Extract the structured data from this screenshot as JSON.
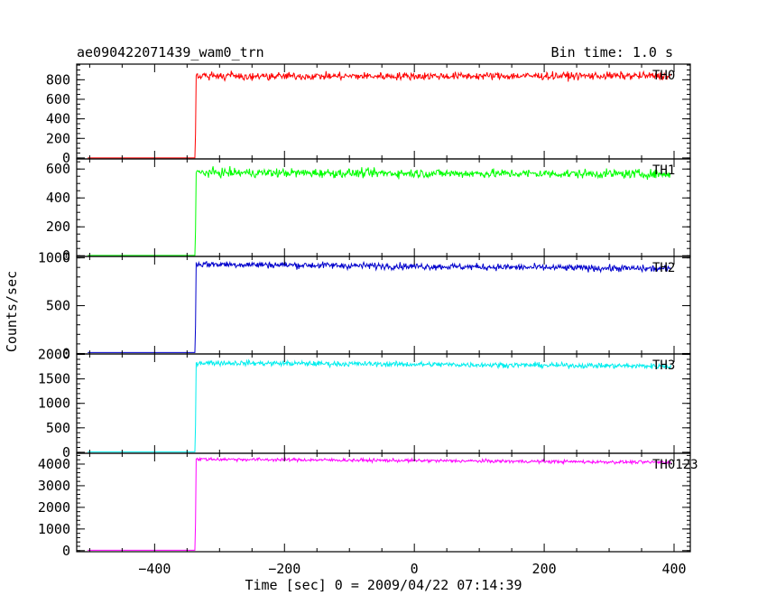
{
  "chart_data": {
    "type": "line",
    "title_left": "ae090422071439_wam0_trn",
    "title_right": "Bin time: 1.0 s",
    "xlabel": "Time [sec] 0 = 2009/04/22 07:14:39",
    "ylabel": "Counts/sec",
    "xlim": [
      -520,
      425
    ],
    "x_ticks": [
      -400,
      -200,
      0,
      200,
      400
    ],
    "grid": false,
    "onset_x": -337,
    "x_end": 395,
    "x_start": -503,
    "panels": [
      {
        "name": "TH0",
        "color": "#ff0000",
        "ylim": [
          -10,
          960
        ],
        "y_ticks": [
          0,
          200,
          400,
          600,
          800
        ],
        "pre_level": 0,
        "start_level": 835,
        "end_level": 840,
        "noise": 28
      },
      {
        "name": "TH1",
        "color": "#00ff00",
        "ylim": [
          -5,
          670
        ],
        "y_ticks": [
          0,
          200,
          400,
          600
        ],
        "pre_level": 2,
        "start_level": 575,
        "end_level": 565,
        "noise": 22
      },
      {
        "name": "TH2",
        "color": "#0000cc",
        "ylim": [
          -5,
          1015
        ],
        "y_ticks": [
          0,
          500,
          1000
        ],
        "pre_level": 10,
        "start_level": 935,
        "end_level": 885,
        "noise": 25
      },
      {
        "name": "TH3",
        "color": "#00eeee",
        "ylim": [
          -20,
          2010
        ],
        "y_ticks": [
          0,
          500,
          1000,
          1500,
          2000
        ],
        "pre_level": 10,
        "start_level": 1830,
        "end_level": 1760,
        "noise": 38
      },
      {
        "name": "TH0123",
        "color": "#ff00ff",
        "ylim": [
          -50,
          4500
        ],
        "y_ticks": [
          0,
          1000,
          2000,
          3000,
          4000
        ],
        "pre_level": 20,
        "start_level": 4230,
        "end_level": 4080,
        "noise": 55
      }
    ]
  }
}
